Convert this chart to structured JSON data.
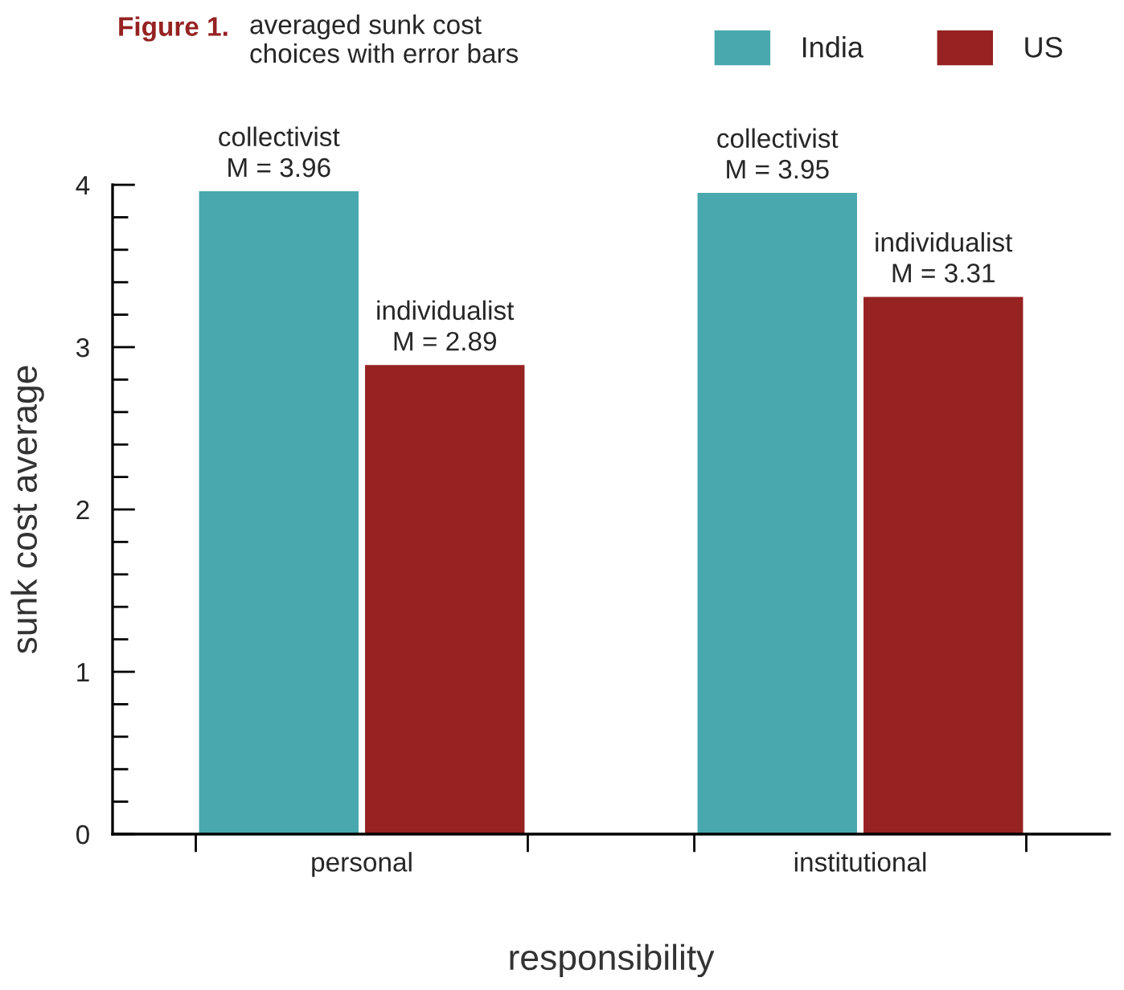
{
  "chart_data": {
    "type": "bar",
    "title": "Figure 1.",
    "subtitle": "averaged sunk cost\nchoices with error bars",
    "xlabel": "responsibility",
    "ylabel": "sunk cost average",
    "categories": [
      "personal",
      "institutional"
    ],
    "series": [
      {
        "name": "India",
        "color": "#48a8ae",
        "values": [
          3.96,
          3.95
        ],
        "value_labels": [
          "collectivist\nM = 3.96",
          "collectivist\nM = 3.95"
        ]
      },
      {
        "name": "US",
        "color": "#962222",
        "values": [
          2.89,
          3.31
        ],
        "value_labels": [
          "individualist\nM = 2.89",
          "individualist\nM = 3.31"
        ]
      }
    ],
    "ylim": [
      0,
      4
    ],
    "yticks": [
      0,
      {
        "value": 0.2,
        "label": null
      },
      {
        "value": 0.4,
        "label": null
      },
      {
        "value": 0.6,
        "label": null
      },
      {
        "value": 0.8,
        "label": null
      },
      1,
      {
        "value": 1.2,
        "label": null
      },
      {
        "value": 1.4,
        "label": null
      },
      {
        "value": 1.6,
        "label": null
      },
      {
        "value": 1.8,
        "label": null
      },
      2,
      {
        "value": 2.2,
        "label": null
      },
      {
        "value": 2.4,
        "label": null
      },
      {
        "value": 2.6,
        "label": null
      },
      {
        "value": 2.8,
        "label": null
      },
      3,
      {
        "value": 3.2,
        "label": null
      },
      {
        "value": 3.4,
        "label": null
      },
      {
        "value": 3.6,
        "label": null
      },
      {
        "value": 3.8,
        "label": null
      },
      4
    ],
    "legend": "top right",
    "grid": false
  }
}
